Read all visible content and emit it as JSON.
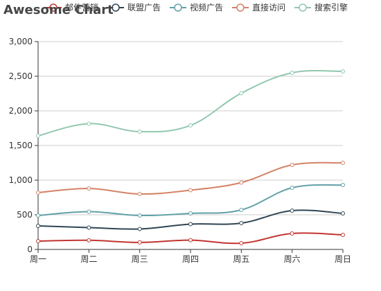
{
  "chart_data": {
    "type": "line",
    "title": "Awesome Chart",
    "xlabel": "",
    "ylabel": "",
    "categories": [
      "周一",
      "周二",
      "周三",
      "周四",
      "周五",
      "周六",
      "周日"
    ],
    "ylim": [
      0,
      3000
    ],
    "yticks": [
      0,
      500,
      1000,
      1500,
      2000,
      2500,
      3000
    ],
    "y_tick_labels": [
      "0",
      "500",
      "1,000",
      "1,500",
      "2,000",
      "2,500",
      "3,000"
    ],
    "grid": true,
    "legend_position": "top",
    "smooth": true,
    "series": [
      {
        "name": "邮件营销",
        "color": "#c23531",
        "values": [
          120,
          132,
          101,
          134,
          90,
          230,
          210
        ]
      },
      {
        "name": "联盟广告",
        "color": "#2f4554",
        "values": [
          340,
          315,
          295,
          365,
          380,
          560,
          520
        ]
      },
      {
        "name": "视频广告",
        "color": "#61a0a8",
        "values": [
          490,
          545,
          490,
          520,
          570,
          890,
          930
        ]
      },
      {
        "name": "直接访问",
        "color": "#d48265",
        "values": [
          820,
          880,
          800,
          855,
          965,
          1220,
          1250
        ]
      },
      {
        "name": "搜索引擎",
        "color": "#91c7ae",
        "values": [
          1640,
          1815,
          1700,
          1790,
          2255,
          2550,
          2570
        ]
      }
    ]
  }
}
